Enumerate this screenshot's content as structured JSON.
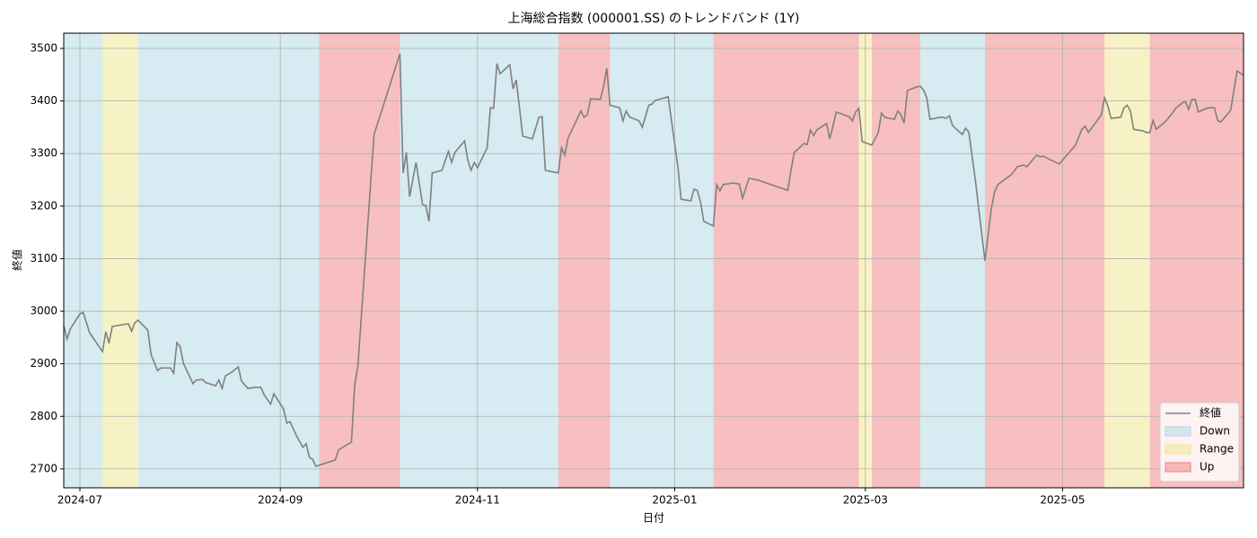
{
  "chart_data": {
    "type": "line",
    "title": "上海総合指数 (000001.SS) のトレンドバンド (1Y)",
    "x_label": "日付",
    "y_label": "終値",
    "xlim": [
      -5,
      360
    ],
    "xticks": [
      {
        "value": 0,
        "label": "2024-07"
      },
      {
        "value": 62,
        "label": "2024-09"
      },
      {
        "value": 123,
        "label": "2024-11"
      },
      {
        "value": 184,
        "label": "2025-01"
      },
      {
        "value": 243,
        "label": "2025-03"
      },
      {
        "value": 304,
        "label": "2025-05"
      }
    ],
    "ylim": [
      2664,
      3529
    ],
    "yticks": [
      2700,
      2800,
      2900,
      3000,
      3100,
      3200,
      3300,
      3400,
      3500
    ],
    "grid": true,
    "legend": "lower right",
    "x": [
      -5,
      -4,
      -3,
      0,
      1,
      3,
      7,
      8,
      9,
      10,
      15,
      16,
      17,
      18,
      21,
      22,
      24,
      25,
      28,
      29,
      30,
      31,
      32,
      35,
      36,
      38,
      39,
      42,
      43,
      44,
      45,
      47,
      49,
      50,
      52,
      54,
      56,
      57,
      59,
      60,
      63,
      64,
      65,
      67,
      69,
      70,
      71,
      72,
      73,
      79,
      80,
      84,
      85,
      86,
      91,
      99,
      100,
      101,
      102,
      104,
      106,
      107,
      108,
      109,
      112,
      114,
      115,
      116,
      119,
      120,
      121,
      122,
      123,
      126,
      127,
      128,
      129,
      130,
      133,
      134,
      135,
      137,
      140,
      142,
      143,
      144,
      148,
      149,
      150,
      151,
      155,
      156,
      157,
      158,
      161,
      162,
      163,
      164,
      167,
      168,
      169,
      170,
      173,
      174,
      176,
      177,
      178,
      182,
      185,
      186,
      189,
      190,
      191,
      192,
      193,
      196,
      197,
      198,
      199,
      202,
      204,
      205,
      207,
      210,
      219,
      220,
      221,
      224,
      225,
      226,
      227,
      228,
      231,
      232,
      233,
      234,
      238,
      239,
      240,
      241,
      242,
      245,
      246,
      247,
      248,
      249,
      252,
      253,
      254,
      255,
      256,
      259,
      260,
      261,
      262,
      263,
      266,
      267,
      268,
      269,
      270,
      273,
      274,
      275,
      277,
      280,
      282,
      283,
      284,
      288,
      289,
      290,
      292,
      293,
      295,
      296,
      297,
      298,
      303,
      308,
      310,
      311,
      312,
      315,
      316,
      317,
      318,
      319,
      322,
      323,
      324,
      325,
      326,
      329,
      330,
      331,
      332,
      333,
      336,
      338,
      339,
      341,
      342,
      343,
      344,
      345,
      346,
      349,
      350,
      351,
      352,
      353,
      356,
      358,
      360
    ],
    "series": [
      {
        "name": "終値",
        "color": "#808080",
        "values": [
          2973,
          2947,
          2966,
          2995,
          2998,
          2959,
          2923,
          2961,
          2939,
          2971,
          2976,
          2962,
          2978,
          2983,
          2964,
          2918,
          2887,
          2892,
          2892,
          2882,
          2940,
          2933,
          2901,
          2862,
          2869,
          2870,
          2864,
          2858,
          2869,
          2853,
          2877,
          2884,
          2894,
          2867,
          2853,
          2855,
          2855,
          2841,
          2823,
          2843,
          2814,
          2787,
          2790,
          2763,
          2741,
          2748,
          2722,
          2718,
          2705,
          2717,
          2736,
          2751,
          2858,
          2896,
          3336,
          3490,
          3263,
          3302,
          3218,
          3283,
          3203,
          3201,
          3171,
          3263,
          3268,
          3304,
          3283,
          3302,
          3324,
          3288,
          3268,
          3283,
          3273,
          3311,
          3387,
          3386,
          3471,
          3452,
          3469,
          3423,
          3440,
          3333,
          3328,
          3369,
          3370,
          3268,
          3263,
          3311,
          3297,
          3329,
          3381,
          3369,
          3374,
          3404,
          3403,
          3427,
          3462,
          3392,
          3387,
          3362,
          3381,
          3370,
          3362,
          3350,
          3392,
          3394,
          3401,
          3408,
          3275,
          3213,
          3210,
          3232,
          3230,
          3208,
          3171,
          3162,
          3241,
          3229,
          3241,
          3244,
          3242,
          3215,
          3253,
          3249,
          3230,
          3268,
          3302,
          3319,
          3317,
          3345,
          3334,
          3345,
          3357,
          3328,
          3353,
          3379,
          3370,
          3362,
          3379,
          3386,
          3323,
          3316,
          3328,
          3340,
          3377,
          3369,
          3365,
          3381,
          3374,
          3358,
          3420,
          3427,
          3428,
          3421,
          3406,
          3365,
          3369,
          3369,
          3367,
          3372,
          3353,
          3336,
          3348,
          3341,
          3251,
          3096,
          3196,
          3227,
          3241,
          3259,
          3266,
          3275,
          3278,
          3275,
          3290,
          3297,
          3294,
          3295,
          3280,
          3316,
          3346,
          3352,
          3340,
          3365,
          3374,
          3406,
          3391,
          3367,
          3369,
          3387,
          3392,
          3381,
          3346,
          3343,
          3340,
          3340,
          3363,
          3346,
          3362,
          3377,
          3386,
          3396,
          3399,
          3384,
          3403,
          3403,
          3379,
          3387,
          3387,
          3387,
          3363,
          3360,
          3382,
          3457,
          3449
        ]
      }
    ],
    "bands": [
      {
        "name": "Down",
        "color": "#add8e6",
        "spans": [
          [
            -5,
            7
          ],
          [
            18,
            74
          ],
          [
            99,
            148
          ],
          [
            164,
            196
          ],
          [
            260,
            280
          ]
        ]
      },
      {
        "name": "Range",
        "color": "#f0e68c",
        "spans": [
          [
            7,
            18
          ],
          [
            241,
            245
          ],
          [
            317,
            331
          ]
        ]
      },
      {
        "name": "Up",
        "color": "#f08080",
        "spans": [
          [
            74,
            99
          ],
          [
            148,
            164
          ],
          [
            196,
            241
          ],
          [
            245,
            260
          ],
          [
            280,
            317
          ],
          [
            331,
            360
          ]
        ]
      }
    ]
  }
}
